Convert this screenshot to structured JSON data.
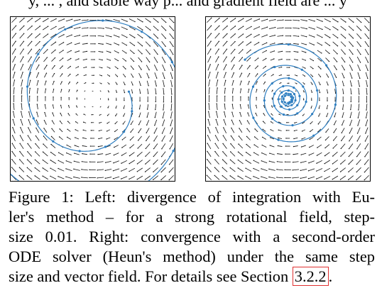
{
  "top_text": "y, ... , and stable way p... and gradient field are ... y",
  "figure": {
    "left_panel": {
      "label": "Left",
      "method": "Euler's method",
      "step_size": 0.01,
      "field": "strong rotational field",
      "trajectory_color": "#2f7fc1",
      "behavior": "divergence"
    },
    "right_panel": {
      "label": "Right",
      "method": "Heun's method",
      "step_size": 0.01,
      "field": "strong rotational field",
      "trajectory_color": "#2f7fc1",
      "behavior": "convergence"
    }
  },
  "caption": {
    "lines": [
      "Figure 1: Left: divergence of integration with Eu-",
      "ler's method – for a strong rotational field, step-",
      "size 0.01. Right: convergence with a second-order",
      "ODE solver (Heun's method) under the same step"
    ],
    "last_line_prefix": "size and vector field. For details see Section ",
    "section_ref": "3.2.2",
    "last_line_suffix": "."
  }
}
